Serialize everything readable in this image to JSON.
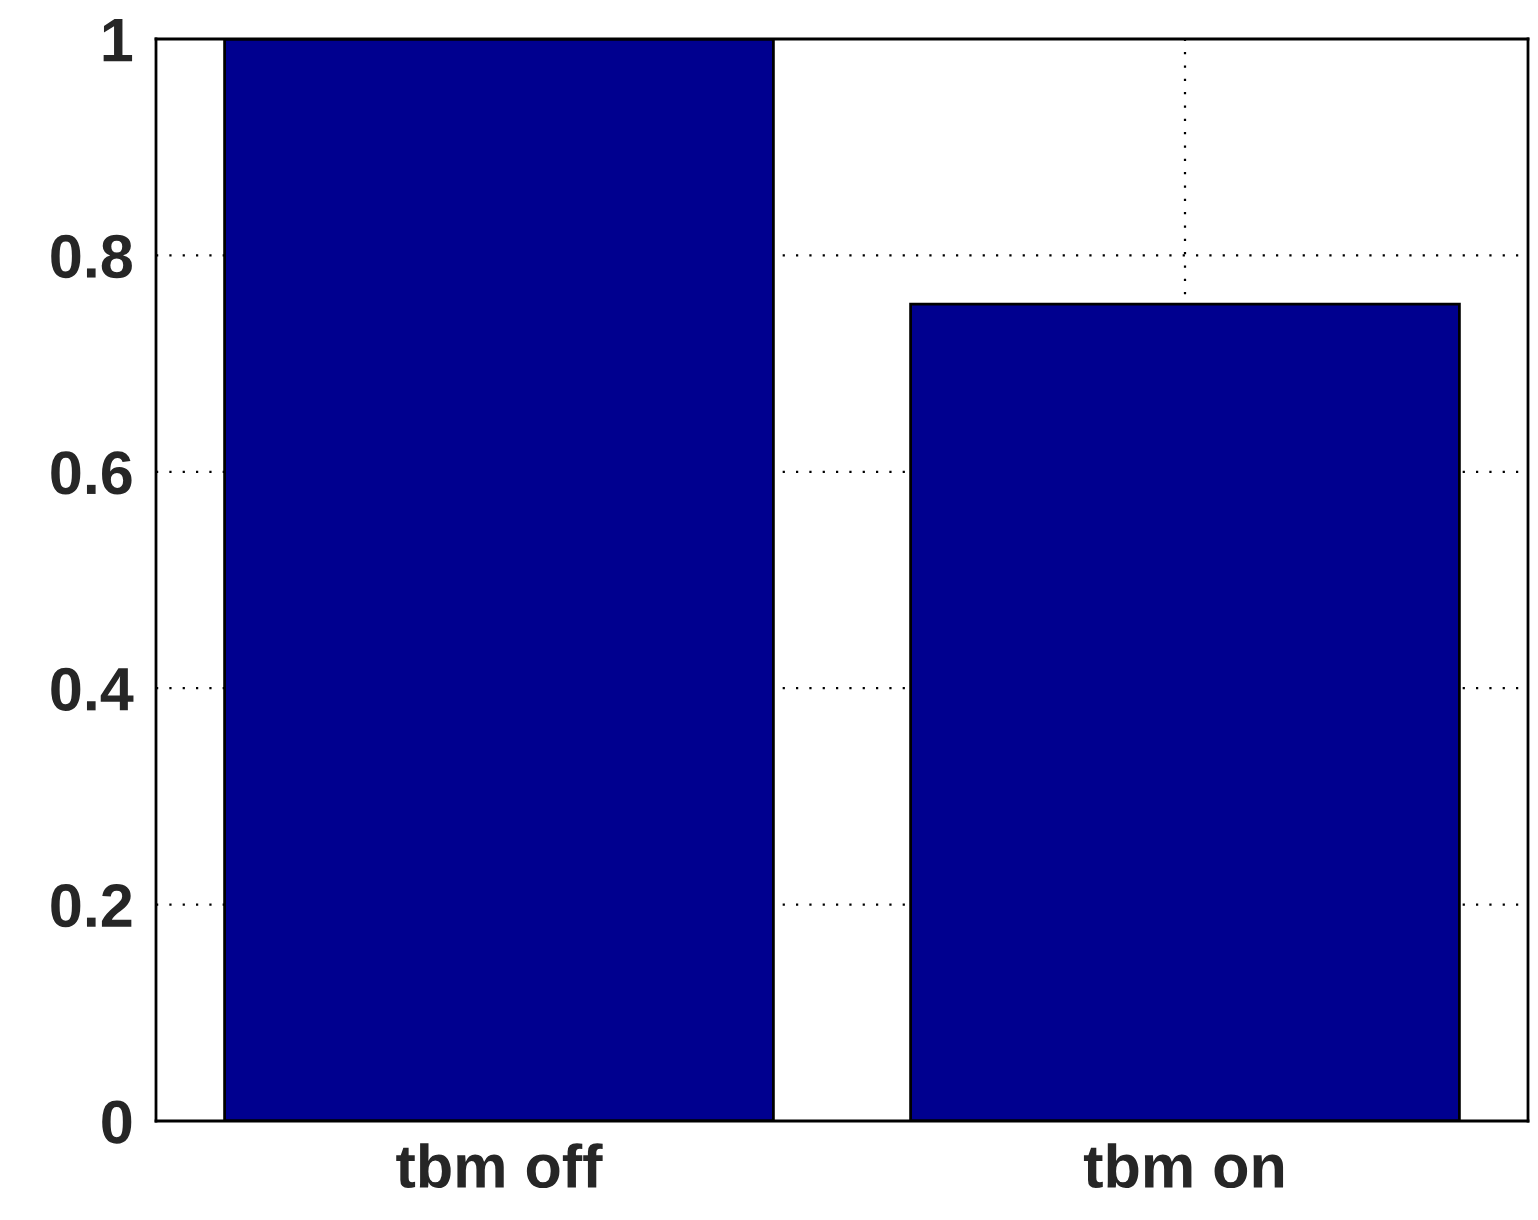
{
  "chart_data": {
    "type": "bar",
    "categories": [
      "tbm off",
      "tbm on"
    ],
    "values": [
      1,
      0.755
    ],
    "color": "#00008f",
    "ylim": [
      0,
      1
    ],
    "yticks": [
      0,
      0.2,
      0.4,
      0.6,
      0.8,
      1
    ],
    "grid": true
  }
}
